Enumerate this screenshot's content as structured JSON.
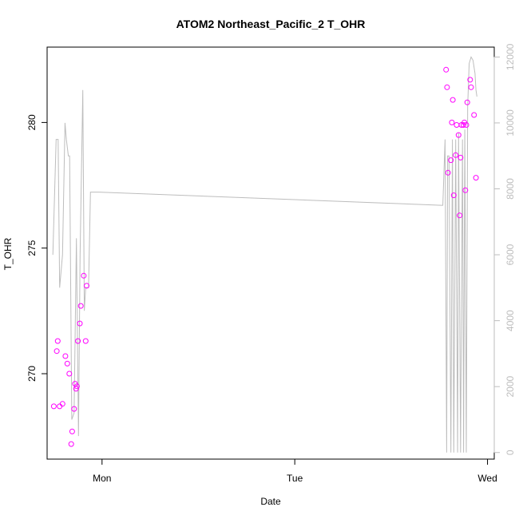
{
  "chart_data": {
    "type": "scatter",
    "title": "ATOM2 Northeast_Pacific_2 T_OHR",
    "xlabel": "Date",
    "ylabel": "T_OHR",
    "x_ticks": [
      "Mon",
      "Tue",
      "Wed"
    ],
    "y_ticks": [
      270,
      275,
      280
    ],
    "y2_ticks": [
      0,
      2000,
      4000,
      6000,
      8000,
      10000,
      12000
    ],
    "ylim": [
      266.6,
      283.0
    ],
    "y2lim": [
      -200,
      12300
    ],
    "xlim_days": [
      -0.285,
      2.035
    ],
    "colors": {
      "points": "#ff00ff",
      "line": "#bdbdbd",
      "right_axis": "#bdbdbd",
      "frame": "#000000"
    },
    "series": [
      {
        "kind": "points",
        "axis": "left",
        "x_days": [
          -0.25,
          -0.235,
          -0.23,
          -0.22,
          -0.205,
          -0.19,
          -0.18,
          -0.17,
          -0.16,
          -0.155,
          -0.145,
          -0.14,
          -0.135,
          -0.13,
          -0.125,
          -0.115,
          -0.11,
          -0.095,
          -0.085,
          -0.08,
          1.785,
          1.79,
          1.795,
          1.81,
          1.815,
          1.82,
          1.825,
          1.835,
          1.84,
          1.85,
          1.855,
          1.86,
          1.865,
          1.875,
          1.88,
          1.885,
          1.89,
          1.895,
          1.91,
          1.915,
          1.93,
          1.94
        ],
        "y": [
          268.7,
          270.9,
          271.3,
          268.7,
          268.8,
          270.7,
          270.4,
          270.0,
          267.2,
          267.7,
          268.6,
          269.6,
          269.4,
          269.5,
          271.3,
          272.0,
          272.7,
          273.9,
          271.3,
          273.5,
          282.1,
          281.4,
          278.0,
          278.5,
          280.0,
          280.9,
          277.1,
          278.7,
          279.9,
          279.5,
          276.3,
          278.6,
          279.9,
          279.9,
          280.0,
          277.3,
          279.9,
          280.8,
          281.7,
          281.4,
          280.3,
          277.8
        ]
      },
      {
        "kind": "line",
        "axis": "right",
        "x_days": [
          -0.255,
          -0.238,
          -0.228,
          -0.22,
          -0.205,
          -0.192,
          -0.185,
          -0.175,
          -0.168,
          -0.157,
          -0.145,
          -0.133,
          -0.122,
          -0.114,
          -0.1,
          -0.092,
          -0.085,
          -0.07,
          -0.06,
          -0.02,
          1.76,
          1.768,
          1.78,
          1.788,
          1.793,
          1.8,
          1.81,
          1.818,
          1.825,
          1.835,
          1.845,
          1.85,
          1.86,
          1.87,
          1.876,
          1.882,
          1.89,
          1.897,
          1.905,
          1.915,
          1.925,
          1.935,
          1.94,
          1.945
        ],
        "y": [
          6000,
          9500,
          9500,
          5000,
          6000,
          10000,
          9500,
          9000,
          9000,
          1000,
          1200,
          6500,
          500,
          6000,
          11000,
          4300,
          5000,
          5000,
          7900,
          7900,
          7500,
          7500,
          9500,
          0,
          9000,
          9000,
          0,
          9500,
          0,
          9500,
          0,
          9700,
          0,
          9500,
          0,
          9800,
          0,
          10500,
          11800,
          12000,
          11900,
          11500,
          11000,
          10800
        ]
      }
    ]
  }
}
